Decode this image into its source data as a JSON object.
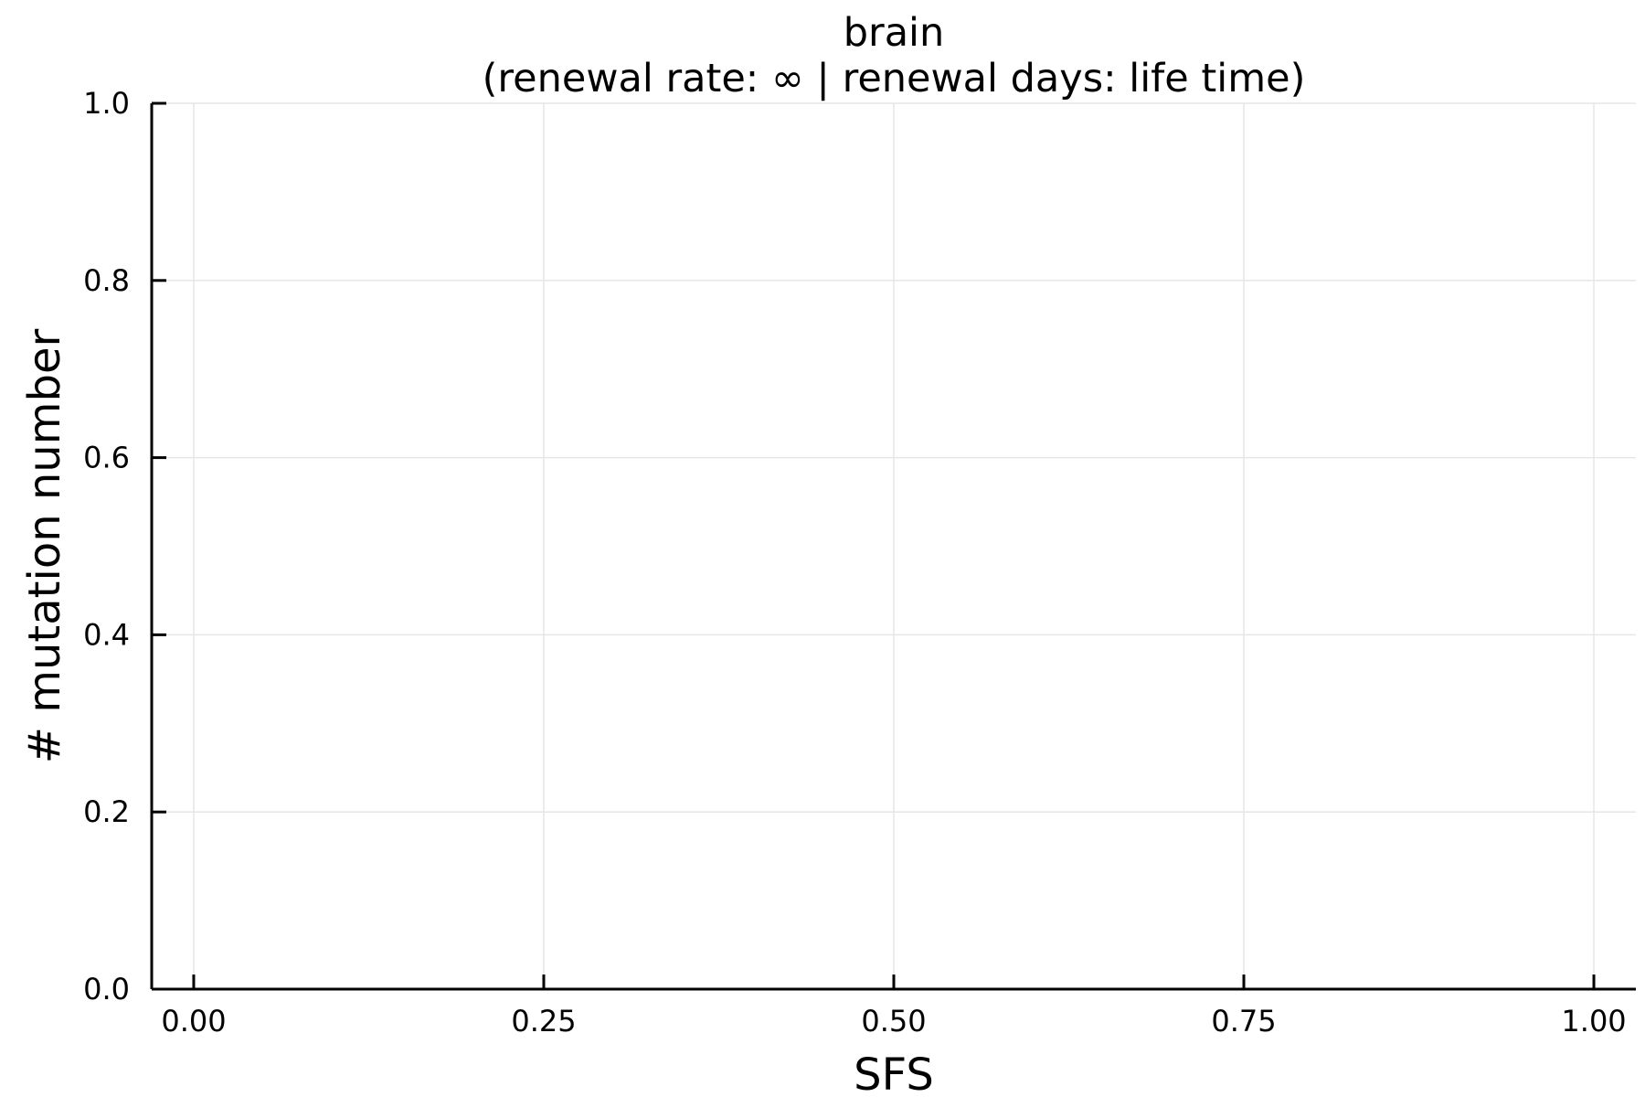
{
  "chart_data": {
    "type": "line",
    "title": "brain",
    "subtitle": "(renewal rate: ∞ | renewal days: life time)",
    "xlabel": "SFS",
    "ylabel": "# mutation number",
    "xlim": [
      -0.03,
      1.03
    ],
    "ylim": [
      0,
      1
    ],
    "x_ticks": [
      0,
      0.25,
      0.5,
      0.75,
      1.0
    ],
    "x_tick_labels": [
      "0.00",
      "0.25",
      "0.50",
      "0.75",
      "1.00"
    ],
    "y_ticks": [
      0,
      0.2,
      0.4,
      0.6,
      0.8,
      1.0
    ],
    "y_tick_labels": [
      "0.0",
      "0.2",
      "0.4",
      "0.6",
      "0.8",
      "1.0"
    ],
    "grid": true,
    "legend": "none",
    "series": []
  }
}
